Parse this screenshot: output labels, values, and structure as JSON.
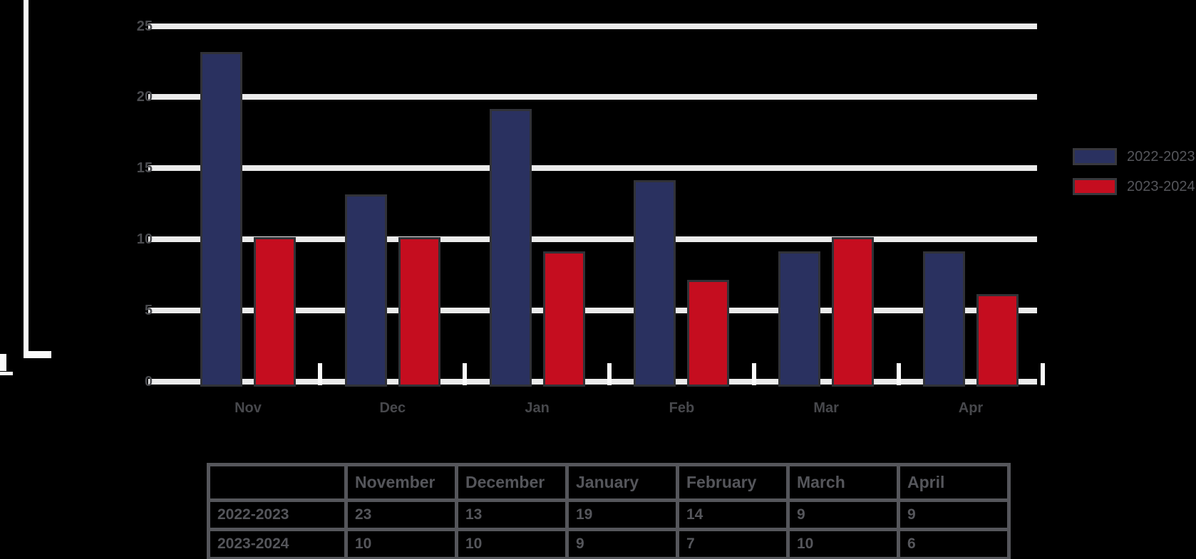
{
  "chart_data": {
    "type": "bar",
    "title": "",
    "xlabel": "",
    "ylabel": "",
    "categories": [
      "Nov",
      "Dec",
      "Jan",
      "Feb",
      "Mar",
      "Apr"
    ],
    "series": [
      {
        "name": "2022-2023",
        "color": "#2A3160",
        "values": [
          23,
          13,
          19,
          14,
          9,
          9
        ]
      },
      {
        "name": "2023-2024",
        "color": "#C50D1F",
        "values": [
          10,
          10,
          9,
          7,
          10,
          6
        ]
      }
    ],
    "y_ticks": [
      25,
      20,
      15,
      10,
      5,
      0
    ],
    "ylim": [
      0,
      25
    ],
    "grid": true,
    "legend_position": "right"
  },
  "legend": {
    "items": [
      {
        "label": "2022-2023",
        "color": "#2A3160"
      },
      {
        "label": "2023-2024",
        "color": "#C50D1F"
      }
    ]
  },
  "table": {
    "columns": [
      "",
      "November",
      "December",
      "January",
      "February",
      "March",
      "April"
    ],
    "rows": [
      {
        "label": "2022-2023",
        "values": [
          "23",
          "13",
          "19",
          "14",
          "9",
          "9"
        ]
      },
      {
        "label": "2023-2024",
        "values": [
          "10",
          "10",
          "9",
          "7",
          "10",
          "6"
        ]
      }
    ]
  },
  "colors": {
    "background": "#000000",
    "navy": "#2A3160",
    "red": "#C50D1F",
    "bar_border": "#313237",
    "gridline": "#EBEBEB",
    "axis_white": "#FAFAFA",
    "muted_text": "#55565B",
    "tick_text": "#4A4B4F"
  }
}
